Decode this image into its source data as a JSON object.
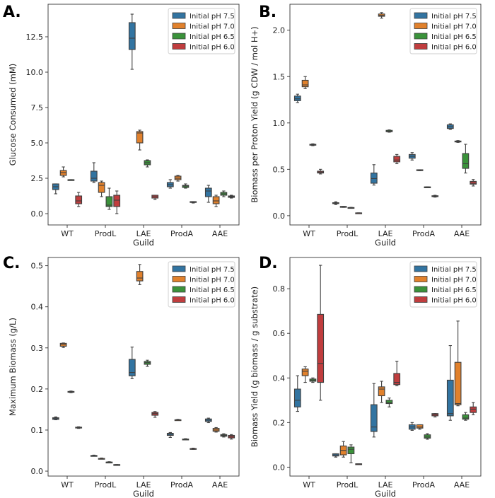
{
  "series_names": [
    "Initial pH 7.5",
    "Initial pH 7.0",
    "Initial pH 6.5",
    "Initial pH 6.0"
  ],
  "colors": [
    "#3274a1",
    "#e1812c",
    "#3a923a",
    "#c03d3e"
  ],
  "chart_data": [
    {
      "panel": "A.",
      "type": "box",
      "ylabel": "Glucose Consumed (mM)",
      "xlabel": "Guild",
      "categories": [
        "WT",
        "ProdL",
        "LAE",
        "ProdA",
        "AAE"
      ],
      "ylim": [
        -0.8,
        14.8
      ],
      "yticks": [
        0.0,
        2.5,
        5.0,
        7.5,
        10.0,
        12.5
      ],
      "ytick_labels": [
        "0.0",
        "2.5",
        "5.0",
        "7.5",
        "10.0",
        "12.5"
      ],
      "legend_position": "top-right",
      "series": [
        {
          "name": "Initial pH 7.5",
          "boxes": [
            {
              "whislo": 1.4,
              "q1": 1.7,
              "med": 1.9,
              "q3": 2.1,
              "whishi": 2.1
            },
            {
              "whislo": 2.2,
              "q1": 2.3,
              "med": 2.5,
              "q3": 3.0,
              "whishi": 3.6
            },
            {
              "whislo": 10.2,
              "q1": 11.6,
              "med": 12.4,
              "q3": 13.5,
              "whishi": 14.1
            },
            {
              "whislo": 1.8,
              "q1": 1.9,
              "med": 2.05,
              "q3": 2.2,
              "whishi": 2.4
            },
            {
              "whislo": 0.8,
              "q1": 1.2,
              "med": 1.6,
              "q3": 1.8,
              "whishi": 2.0
            }
          ]
        },
        {
          "name": "Initial pH 7.0",
          "boxes": [
            {
              "whislo": 2.6,
              "q1": 2.7,
              "med": 2.9,
              "q3": 3.05,
              "whishi": 3.3
            },
            {
              "whislo": 1.2,
              "q1": 1.5,
              "med": 2.0,
              "q3": 2.2,
              "whishi": 2.3
            },
            {
              "whislo": 4.5,
              "q1": 5.0,
              "med": 5.7,
              "q3": 5.8,
              "whishi": 5.9
            },
            {
              "whislo": 2.3,
              "q1": 2.4,
              "med": 2.5,
              "q3": 2.65,
              "whishi": 2.7
            },
            {
              "whislo": 0.5,
              "q1": 0.7,
              "med": 0.9,
              "q3": 1.2,
              "whishi": 1.3
            }
          ]
        },
        {
          "name": "Initial pH 6.5",
          "boxes": [
            {
              "whislo": 2.4,
              "q1": 2.4,
              "med": 2.4,
              "q3": 2.4,
              "whishi": 2.4
            },
            {
              "whislo": 0.3,
              "q1": 0.5,
              "med": 0.6,
              "q3": 1.2,
              "whishi": 1.8
            },
            {
              "whislo": 3.3,
              "q1": 3.45,
              "med": 3.6,
              "q3": 3.75,
              "whishi": 3.8
            },
            {
              "whislo": 1.8,
              "q1": 1.85,
              "med": 1.95,
              "q3": 2.0,
              "whishi": 2.1
            },
            {
              "whislo": 1.2,
              "q1": 1.3,
              "med": 1.4,
              "q3": 1.5,
              "whishi": 1.6
            }
          ]
        },
        {
          "name": "Initial pH 6.0",
          "boxes": [
            {
              "whislo": 0.5,
              "q1": 0.7,
              "med": 0.9,
              "q3": 1.25,
              "whishi": 1.5
            },
            {
              "whislo": 0.0,
              "q1": 0.5,
              "med": 0.95,
              "q3": 1.3,
              "whishi": 1.6
            },
            {
              "whislo": 1.0,
              "q1": 1.1,
              "med": 1.2,
              "q3": 1.3,
              "whishi": 1.3
            },
            {
              "whislo": 0.75,
              "q1": 0.8,
              "med": 0.8,
              "q3": 0.85,
              "whishi": 0.85
            },
            {
              "whislo": 1.1,
              "q1": 1.15,
              "med": 1.2,
              "q3": 1.25,
              "whishi": 1.3
            }
          ]
        }
      ]
    },
    {
      "panel": "B.",
      "type": "box",
      "ylabel": "Biomass per Proton Yield (g CDW / mol H+)",
      "xlabel": "Guild",
      "categories": [
        "WT",
        "ProdL",
        "LAE",
        "ProdA",
        "AAE"
      ],
      "ylim": [
        -0.1,
        2.28
      ],
      "yticks": [
        0.0,
        0.5,
        1.0,
        1.5,
        2.0
      ],
      "ytick_labels": [
        "0.0",
        "0.5",
        "1.0",
        "1.5",
        "2.0"
      ],
      "legend_position": "top-right",
      "series": [
        {
          "name": "Initial pH 7.5",
          "boxes": [
            {
              "whislo": 1.22,
              "q1": 1.24,
              "med": 1.26,
              "q3": 1.29,
              "whishi": 1.31
            },
            {
              "whislo": 0.12,
              "q1": 0.13,
              "med": 0.135,
              "q3": 0.14,
              "whishi": 0.15
            },
            {
              "whislo": 0.33,
              "q1": 0.35,
              "med": 0.4,
              "q3": 0.46,
              "whishi": 0.55
            },
            {
              "whislo": 0.6,
              "q1": 0.62,
              "med": 0.64,
              "q3": 0.66,
              "whishi": 0.68
            },
            {
              "whislo": 0.93,
              "q1": 0.94,
              "med": 0.96,
              "q3": 0.98,
              "whishi": 0.99
            }
          ]
        },
        {
          "name": "Initial pH 7.0",
          "boxes": [
            {
              "whislo": 1.37,
              "q1": 1.39,
              "med": 1.41,
              "q3": 1.46,
              "whishi": 1.5
            },
            {
              "whislo": 0.09,
              "q1": 0.09,
              "med": 0.095,
              "q3": 0.1,
              "whishi": 0.1
            },
            {
              "whislo": 2.13,
              "q1": 2.15,
              "med": 2.16,
              "q3": 2.175,
              "whishi": 2.19
            },
            {
              "whislo": 0.485,
              "q1": 0.49,
              "med": 0.49,
              "q3": 0.495,
              "whishi": 0.495
            },
            {
              "whislo": 0.79,
              "q1": 0.795,
              "med": 0.8,
              "q3": 0.805,
              "whishi": 0.81
            }
          ]
        },
        {
          "name": "Initial pH 6.5",
          "boxes": [
            {
              "whislo": 0.755,
              "q1": 0.76,
              "med": 0.765,
              "q3": 0.77,
              "whishi": 0.775
            },
            {
              "whislo": 0.08,
              "q1": 0.082,
              "med": 0.085,
              "q3": 0.088,
              "whishi": 0.09
            },
            {
              "whislo": 0.9,
              "q1": 0.905,
              "med": 0.91,
              "q3": 0.92,
              "whishi": 0.925
            },
            {
              "whislo": 0.31,
              "q1": 0.31,
              "med": 0.31,
              "q3": 0.31,
              "whishi": 0.31
            },
            {
              "whislo": 0.46,
              "q1": 0.51,
              "med": 0.56,
              "q3": 0.67,
              "whishi": 0.77
            }
          ]
        },
        {
          "name": "Initial pH 6.0",
          "boxes": [
            {
              "whislo": 0.45,
              "q1": 0.46,
              "med": 0.47,
              "q3": 0.48,
              "whishi": 0.5
            },
            {
              "whislo": 0.03,
              "q1": 0.03,
              "med": 0.03,
              "q3": 0.03,
              "whishi": 0.03
            },
            {
              "whislo": 0.56,
              "q1": 0.58,
              "med": 0.6,
              "q3": 0.64,
              "whishi": 0.66
            },
            {
              "whislo": 0.2,
              "q1": 0.205,
              "med": 0.21,
              "q3": 0.215,
              "whishi": 0.22
            },
            {
              "whislo": 0.32,
              "q1": 0.34,
              "med": 0.35,
              "q3": 0.37,
              "whishi": 0.39
            }
          ]
        }
      ]
    },
    {
      "panel": "C.",
      "type": "box",
      "ylabel": "Maximum Biomass (g/L)",
      "xlabel": "Guild",
      "categories": [
        "WT",
        "ProdL",
        "LAE",
        "ProdA",
        "AAE"
      ],
      "ylim": [
        -0.012,
        0.52
      ],
      "yticks": [
        0.0,
        0.1,
        0.2,
        0.3,
        0.4,
        0.5
      ],
      "ytick_labels": [
        "0.0",
        "0.1",
        "0.2",
        "0.3",
        "0.4",
        "0.5"
      ],
      "legend_position": "top-right",
      "series": [
        {
          "name": "Initial pH 7.5",
          "boxes": [
            {
              "whislo": 0.125,
              "q1": 0.126,
              "med": 0.128,
              "q3": 0.13,
              "whishi": 0.132
            },
            {
              "whislo": 0.037,
              "q1": 0.037,
              "med": 0.038,
              "q3": 0.038,
              "whishi": 0.039
            },
            {
              "whislo": 0.225,
              "q1": 0.232,
              "med": 0.24,
              "q3": 0.272,
              "whishi": 0.302
            },
            {
              "whislo": 0.082,
              "q1": 0.087,
              "med": 0.09,
              "q3": 0.092,
              "whishi": 0.094
            },
            {
              "whislo": 0.118,
              "q1": 0.121,
              "med": 0.124,
              "q3": 0.127,
              "whishi": 0.129
            }
          ]
        },
        {
          "name": "Initial pH 7.0",
          "boxes": [
            {
              "whislo": 0.301,
              "q1": 0.304,
              "med": 0.308,
              "q3": 0.311,
              "whishi": 0.312
            },
            {
              "whislo": 0.03,
              "q1": 0.03,
              "med": 0.031,
              "q3": 0.031,
              "whishi": 0.032
            },
            {
              "whislo": 0.454,
              "q1": 0.463,
              "med": 0.47,
              "q3": 0.486,
              "whishi": 0.503
            },
            {
              "whislo": 0.124,
              "q1": 0.124,
              "med": 0.125,
              "q3": 0.125,
              "whishi": 0.126
            },
            {
              "whislo": 0.095,
              "q1": 0.097,
              "med": 0.1,
              "q3": 0.104,
              "whishi": 0.106
            }
          ]
        },
        {
          "name": "Initial pH 6.5",
          "boxes": [
            {
              "whislo": 0.191,
              "q1": 0.192,
              "med": 0.193,
              "q3": 0.194,
              "whishi": 0.195
            },
            {
              "whislo": 0.021,
              "q1": 0.021,
              "med": 0.022,
              "q3": 0.022,
              "whishi": 0.023
            },
            {
              "whislo": 0.255,
              "q1": 0.26,
              "med": 0.264,
              "q3": 0.267,
              "whishi": 0.27
            },
            {
              "whislo": 0.077,
              "q1": 0.077,
              "med": 0.078,
              "q3": 0.078,
              "whishi": 0.079
            },
            {
              "whislo": 0.083,
              "q1": 0.085,
              "med": 0.087,
              "q3": 0.089,
              "whishi": 0.091
            }
          ]
        },
        {
          "name": "Initial pH 6.0",
          "boxes": [
            {
              "whislo": 0.104,
              "q1": 0.105,
              "med": 0.106,
              "q3": 0.107,
              "whishi": 0.108
            },
            {
              "whislo": 0.014,
              "q1": 0.015,
              "med": 0.015,
              "q3": 0.016,
              "whishi": 0.016
            },
            {
              "whislo": 0.131,
              "q1": 0.136,
              "med": 0.14,
              "q3": 0.143,
              "whishi": 0.145
            },
            {
              "whislo": 0.053,
              "q1": 0.054,
              "med": 0.055,
              "q3": 0.055,
              "whishi": 0.056
            },
            {
              "whislo": 0.078,
              "q1": 0.081,
              "med": 0.084,
              "q3": 0.087,
              "whishi": 0.089
            }
          ]
        }
      ]
    },
    {
      "panel": "D.",
      "type": "box",
      "ylabel": "Biomass Yield (g biomass / g substrate)",
      "xlabel": "Guild",
      "categories": [
        "WT",
        "ProdL",
        "LAE",
        "ProdA",
        "AAE"
      ],
      "ylim": [
        -0.04,
        0.94
      ],
      "yticks": [
        0.0,
        0.2,
        0.4,
        0.6,
        0.8
      ],
      "ytick_labels": [
        "0.0",
        "0.2",
        "0.4",
        "0.6",
        "0.8"
      ],
      "legend_position": "top-right",
      "series": [
        {
          "name": "Initial pH 7.5",
          "boxes": [
            {
              "whislo": 0.25,
              "q1": 0.27,
              "med": 0.3,
              "q3": 0.35,
              "whishi": 0.41
            },
            {
              "whislo": 0.045,
              "q1": 0.05,
              "med": 0.055,
              "q3": 0.06,
              "whishi": 0.06
            },
            {
              "whislo": 0.135,
              "q1": 0.16,
              "med": 0.18,
              "q3": 0.28,
              "whishi": 0.375
            },
            {
              "whislo": 0.165,
              "q1": 0.17,
              "med": 0.18,
              "q3": 0.19,
              "whishi": 0.2
            },
            {
              "whislo": 0.21,
              "q1": 0.23,
              "med": 0.24,
              "q3": 0.39,
              "whishi": 0.545
            }
          ]
        },
        {
          "name": "Initial pH 7.0",
          "boxes": [
            {
              "whislo": 0.38,
              "q1": 0.41,
              "med": 0.43,
              "q3": 0.44,
              "whishi": 0.45
            },
            {
              "whislo": 0.045,
              "q1": 0.055,
              "med": 0.075,
              "q3": 0.095,
              "whishi": 0.115
            },
            {
              "whislo": 0.29,
              "q1": 0.32,
              "med": 0.35,
              "q3": 0.36,
              "whishi": 0.385
            },
            {
              "whislo": 0.17,
              "q1": 0.175,
              "med": 0.18,
              "q3": 0.19,
              "whishi": 0.19
            },
            {
              "whislo": 0.275,
              "q1": 0.28,
              "med": 0.285,
              "q3": 0.47,
              "whishi": 0.655
            }
          ]
        },
        {
          "name": "Initial pH 6.5",
          "boxes": [
            {
              "whislo": 0.38,
              "q1": 0.385,
              "med": 0.39,
              "q3": 0.395,
              "whishi": 0.4
            },
            {
              "whislo": 0.02,
              "q1": 0.06,
              "med": 0.08,
              "q3": 0.09,
              "whishi": 0.1
            },
            {
              "whislo": 0.27,
              "q1": 0.285,
              "med": 0.29,
              "q3": 0.3,
              "whishi": 0.31
            },
            {
              "whislo": 0.125,
              "q1": 0.13,
              "med": 0.135,
              "q3": 0.145,
              "whishi": 0.15
            },
            {
              "whislo": 0.21,
              "q1": 0.215,
              "med": 0.22,
              "q3": 0.235,
              "whishi": 0.245
            }
          ]
        },
        {
          "name": "Initial pH 6.0",
          "boxes": [
            {
              "whislo": 0.3,
              "q1": 0.38,
              "med": 0.465,
              "q3": 0.685,
              "whishi": 0.905
            },
            {
              "whislo": 0.015,
              "q1": 0.015,
              "med": 0.015,
              "q3": 0.015,
              "whishi": 0.015
            },
            {
              "whislo": 0.365,
              "q1": 0.37,
              "med": 0.38,
              "q3": 0.42,
              "whishi": 0.475
            },
            {
              "whislo": 0.225,
              "q1": 0.23,
              "med": 0.235,
              "q3": 0.24,
              "whishi": 0.24
            },
            {
              "whislo": 0.235,
              "q1": 0.245,
              "med": 0.26,
              "q3": 0.27,
              "whishi": 0.29
            }
          ]
        }
      ]
    }
  ]
}
